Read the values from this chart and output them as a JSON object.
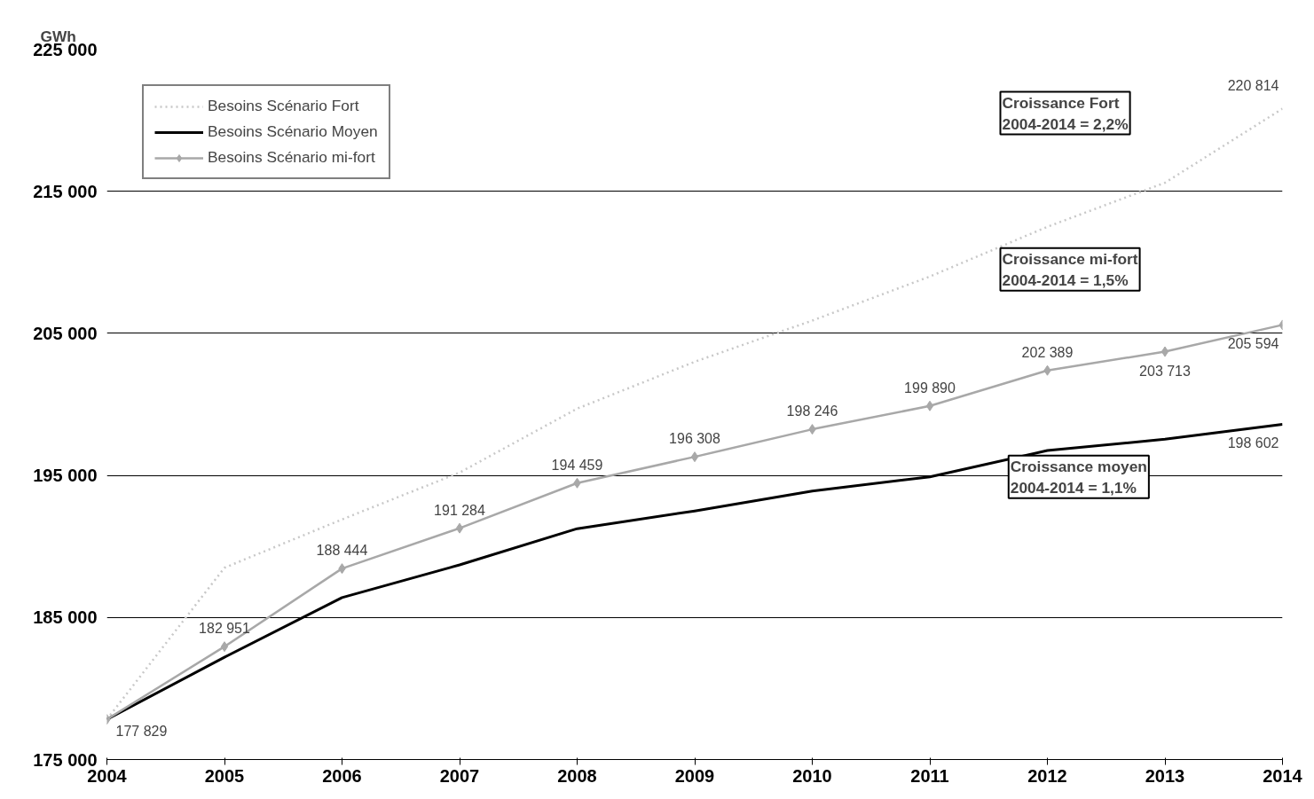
{
  "chart_data": {
    "type": "line",
    "ylabel": "GWh",
    "x": [
      2004,
      2005,
      2006,
      2007,
      2008,
      2009,
      2010,
      2011,
      2012,
      2013,
      2014
    ],
    "xlim": [
      2004,
      2014
    ],
    "xticks": [
      2004,
      2005,
      2006,
      2007,
      2008,
      2009,
      2010,
      2011,
      2012,
      2013,
      2014
    ],
    "ylim": [
      175000,
      225000
    ],
    "yticks": [
      {
        "value": 175000,
        "label": "175 000"
      },
      {
        "value": 185000,
        "label": "185 000"
      },
      {
        "value": 195000,
        "label": "195 000"
      },
      {
        "value": 205000,
        "label": "205 000"
      },
      {
        "value": 215000,
        "label": "215 000"
      },
      {
        "value": 225000,
        "label": "225 000"
      }
    ],
    "grid": "y",
    "legend": "top left",
    "series": [
      {
        "name": "Besoins Scénario Fort",
        "color": "#c8c8c8",
        "line_style": "dotted",
        "marker": "none",
        "values": [
          177829,
          188500,
          191900,
          195200,
          199700,
          203000,
          205900,
          209000,
          212500,
          215600,
          220814
        ],
        "value_labels": [
          null,
          null,
          null,
          null,
          null,
          null,
          null,
          null,
          null,
          null,
          "220 814"
        ]
      },
      {
        "name": "Besoins Scénario Moyen",
        "color": "#000000",
        "line_style": "solid",
        "marker": "none",
        "values": [
          177829,
          182200,
          186400,
          188700,
          191250,
          192500,
          193900,
          194900,
          196750,
          197550,
          198602
        ],
        "value_labels": [
          null,
          null,
          null,
          null,
          null,
          null,
          null,
          null,
          null,
          null,
          "198 602"
        ]
      },
      {
        "name": "Besoins Scénario mi-fort",
        "color": "#a8a8a8",
        "line_style": "solid",
        "marker": "diamond",
        "values": [
          177829,
          182951,
          188444,
          191284,
          194459,
          196308,
          198246,
          199890,
          202389,
          203713,
          205594
        ],
        "value_labels": [
          "177 829",
          "182 951",
          "188 444",
          "191 284",
          "194 459",
          "196 308",
          "198 246",
          "199 890",
          "202 389",
          "203 713",
          "205 594"
        ]
      }
    ],
    "annotations": [
      "Croissance Fort\n2004-2014 = 2,2%",
      "Croissance mi-fort\n2004-2014 = 1,5%",
      "Croissance moyen\n2004-2014 = 1,1%"
    ]
  }
}
